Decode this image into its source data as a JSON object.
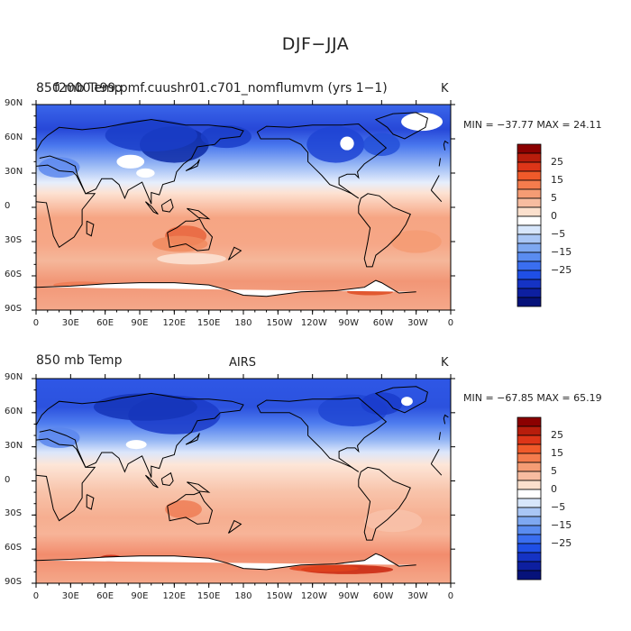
{
  "figure": {
    "title": "DJF−JJA"
  },
  "panels": [
    {
      "id": "model",
      "title_left": "850 mb Temp",
      "title_overlay": "f2000.t99.pmf.cuushr01.c701_nomflumvm (yrs 1−1)",
      "title_center": "",
      "unit": "K",
      "stats": "MIN = −37.77 MAX =  24.11"
    },
    {
      "id": "obs",
      "title_left": "850 mb Temp",
      "title_overlay": "",
      "title_center": "AIRS",
      "unit": "K",
      "stats": "MIN = −67.85 MAX =  65.19"
    }
  ],
  "map": {
    "lat_ticks": [
      "90N",
      "60N",
      "30N",
      "0",
      "30S",
      "60S",
      "90S"
    ],
    "lon_ticks": [
      "0",
      "30E",
      "60E",
      "90E",
      "120E",
      "150E",
      "180",
      "150W",
      "120W",
      "90W",
      "60W",
      "30W",
      "0"
    ]
  },
  "colorbar": {
    "labels": [
      "25",
      "15",
      "5",
      "0",
      "−5",
      "−15",
      "−25"
    ],
    "colors": [
      "#8b0000",
      "#b81d0c",
      "#dd3518",
      "#f05a2a",
      "#f47c4d",
      "#f59c74",
      "#f7bca0",
      "#fbe0cd",
      "#ffffff",
      "#d7e6fb",
      "#a9c6f5",
      "#7ea8f1",
      "#5a8cf0",
      "#3a6ef0",
      "#1f4fe6",
      "#1533c4",
      "#0d1fa0",
      "#06127a"
    ]
  },
  "chart_data": {
    "type": "heatmap",
    "title": "DJF−JJA",
    "variable": "850 mb Temp",
    "units": "K",
    "projection": "cylindrical equidistant",
    "x_range": [
      "0",
      "0"
    ],
    "y_range": [
      "90S",
      "90N"
    ],
    "contour_levels": [
      -25,
      -20,
      -15,
      -10,
      -5,
      -2,
      0,
      2,
      5,
      10,
      15,
      20,
      25
    ],
    "panels": [
      {
        "name": "f2000.t99.pmf.cuushr01.c701_nomflumvm (yrs 1−1)",
        "min": -37.77,
        "max": 24.11
      },
      {
        "name": "AIRS",
        "min": -67.85,
        "max": 65.19
      }
    ]
  }
}
